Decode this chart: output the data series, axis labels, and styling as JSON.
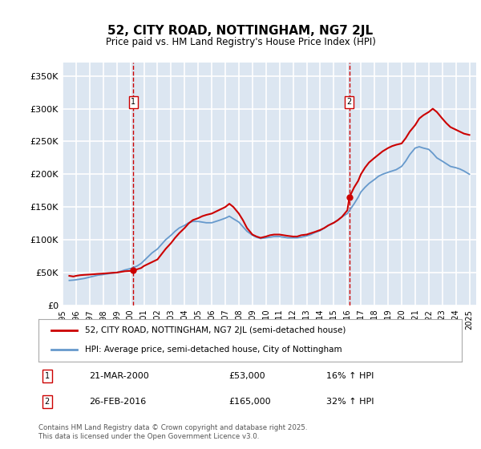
{
  "title": "52, CITY ROAD, NOTTINGHAM, NG7 2JL",
  "subtitle": "Price paid vs. HM Land Registry's House Price Index (HPI)",
  "ylabel_ticks": [
    "£0",
    "£50K",
    "£100K",
    "£150K",
    "£200K",
    "£250K",
    "£300K",
    "£350K"
  ],
  "ytick_values": [
    0,
    50000,
    100000,
    150000,
    200000,
    250000,
    300000,
    350000
  ],
  "ylim": [
    0,
    370000
  ],
  "xlim_start": 1995.0,
  "xlim_end": 2025.5,
  "background_color": "#dce6f1",
  "plot_bg_color": "#dce6f1",
  "grid_color": "#ffffff",
  "red_color": "#cc0000",
  "blue_color": "#6699cc",
  "marker1_x": 2000.22,
  "marker1_y": 53000,
  "marker2_x": 2016.15,
  "marker2_y": 165000,
  "legend_label_red": "52, CITY ROAD, NOTTINGHAM, NG7 2JL (semi-detached house)",
  "legend_label_blue": "HPI: Average price, semi-detached house, City of Nottingham",
  "annotation1_label": "1",
  "annotation2_label": "2",
  "note1_num": "1",
  "note1_date": "21-MAR-2000",
  "note1_price": "£53,000",
  "note1_hpi": "16% ↑ HPI",
  "note2_num": "2",
  "note2_date": "26-FEB-2016",
  "note2_price": "£165,000",
  "note2_hpi": "32% ↑ HPI",
  "footer": "Contains HM Land Registry data © Crown copyright and database right 2025.\nThis data is licensed under the Open Government Licence v3.0.",
  "red_line": {
    "x": [
      1995.5,
      1995.8,
      1996.0,
      1996.3,
      1996.6,
      1997.0,
      1997.3,
      1997.6,
      1998.0,
      1998.3,
      1998.6,
      1999.0,
      1999.3,
      1999.6,
      2000.0,
      2000.22,
      2000.5,
      2000.8,
      2001.0,
      2001.3,
      2001.6,
      2002.0,
      2002.3,
      2002.6,
      2003.0,
      2003.3,
      2003.6,
      2004.0,
      2004.3,
      2004.6,
      2005.0,
      2005.3,
      2005.6,
      2006.0,
      2006.3,
      2006.6,
      2007.0,
      2007.3,
      2007.6,
      2008.0,
      2008.3,
      2008.6,
      2009.0,
      2009.3,
      2009.6,
      2010.0,
      2010.3,
      2010.6,
      2011.0,
      2011.3,
      2011.6,
      2012.0,
      2012.3,
      2012.6,
      2013.0,
      2013.3,
      2013.6,
      2014.0,
      2014.3,
      2014.6,
      2015.0,
      2015.3,
      2015.6,
      2016.0,
      2016.15,
      2016.5,
      2016.8,
      2017.0,
      2017.3,
      2017.6,
      2018.0,
      2018.3,
      2018.6,
      2019.0,
      2019.3,
      2019.6,
      2020.0,
      2020.3,
      2020.6,
      2021.0,
      2021.3,
      2021.6,
      2022.0,
      2022.3,
      2022.6,
      2023.0,
      2023.3,
      2023.6,
      2024.0,
      2024.3,
      2024.6,
      2025.0
    ],
    "y": [
      45000,
      44000,
      45000,
      46000,
      46500,
      47000,
      47500,
      48000,
      48500,
      49000,
      49500,
      50000,
      51000,
      52000,
      52500,
      53000,
      55000,
      57000,
      60000,
      63000,
      66000,
      70000,
      78000,
      86000,
      95000,
      103000,
      110000,
      118000,
      125000,
      130000,
      133000,
      136000,
      138000,
      140000,
      143000,
      146000,
      150000,
      155000,
      150000,
      140000,
      130000,
      118000,
      108000,
      105000,
      103000,
      105000,
      107000,
      108000,
      108000,
      107000,
      106000,
      105000,
      105000,
      107000,
      108000,
      110000,
      112000,
      115000,
      118000,
      122000,
      126000,
      130000,
      135000,
      145000,
      165000,
      180000,
      190000,
      200000,
      210000,
      218000,
      225000,
      230000,
      235000,
      240000,
      243000,
      245000,
      247000,
      255000,
      265000,
      275000,
      285000,
      290000,
      295000,
      300000,
      295000,
      285000,
      278000,
      272000,
      268000,
      265000,
      262000,
      260000
    ]
  },
  "blue_line": {
    "x": [
      1995.5,
      1995.8,
      1996.0,
      1996.3,
      1996.6,
      1997.0,
      1997.3,
      1997.6,
      1998.0,
      1998.3,
      1998.6,
      1999.0,
      1999.3,
      1999.6,
      2000.0,
      2000.5,
      2000.8,
      2001.0,
      2001.3,
      2001.6,
      2002.0,
      2002.3,
      2002.6,
      2003.0,
      2003.3,
      2003.6,
      2004.0,
      2004.3,
      2004.6,
      2005.0,
      2005.3,
      2005.6,
      2006.0,
      2006.3,
      2006.6,
      2007.0,
      2007.3,
      2007.6,
      2008.0,
      2008.3,
      2008.6,
      2009.0,
      2009.3,
      2009.6,
      2010.0,
      2010.3,
      2010.6,
      2011.0,
      2011.3,
      2011.6,
      2012.0,
      2012.3,
      2012.6,
      2013.0,
      2013.3,
      2013.6,
      2014.0,
      2014.3,
      2014.6,
      2015.0,
      2015.3,
      2015.6,
      2016.0,
      2016.5,
      2016.8,
      2017.0,
      2017.3,
      2017.6,
      2018.0,
      2018.3,
      2018.6,
      2019.0,
      2019.3,
      2019.6,
      2020.0,
      2020.3,
      2020.6,
      2021.0,
      2021.3,
      2021.6,
      2022.0,
      2022.3,
      2022.6,
      2023.0,
      2023.3,
      2023.6,
      2024.0,
      2024.3,
      2024.6,
      2025.0
    ],
    "y": [
      38000,
      38500,
      39000,
      40000,
      41000,
      43000,
      44500,
      46000,
      47000,
      48000,
      49000,
      50000,
      52000,
      54000,
      56000,
      60000,
      64000,
      68000,
      74000,
      80000,
      86000,
      93000,
      100000,
      107000,
      113000,
      118000,
      122000,
      126000,
      128000,
      128000,
      127000,
      126000,
      126000,
      128000,
      130000,
      133000,
      136000,
      132000,
      127000,
      120000,
      113000,
      107000,
      104000,
      102000,
      103000,
      104000,
      105000,
      105000,
      104000,
      103000,
      103000,
      103000,
      104000,
      106000,
      108000,
      111000,
      114000,
      118000,
      122000,
      126000,
      130000,
      135000,
      140000,
      155000,
      165000,
      173000,
      180000,
      186000,
      192000,
      197000,
      200000,
      203000,
      205000,
      207000,
      212000,
      220000,
      230000,
      240000,
      242000,
      240000,
      238000,
      232000,
      225000,
      220000,
      216000,
      212000,
      210000,
      208000,
      205000,
      200000
    ]
  }
}
